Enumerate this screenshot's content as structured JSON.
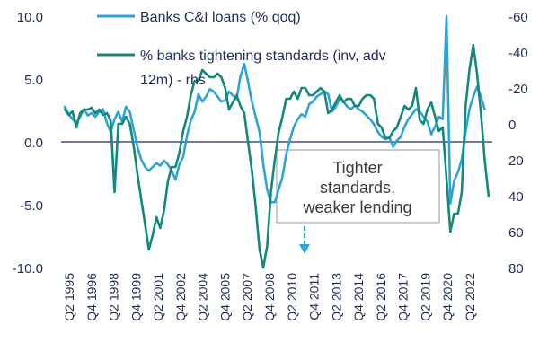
{
  "chart_data": {
    "type": "line",
    "title": "",
    "xlabel": "",
    "y_left": {
      "label": "",
      "range": [
        -10,
        10
      ],
      "ticks": [
        "10.0",
        "5.0",
        "0.0",
        "-5.0",
        "-10.0"
      ]
    },
    "y_right": {
      "label": "",
      "range": [
        -60,
        80
      ],
      "inverted": true,
      "ticks": [
        "-60",
        "-40",
        "-20",
        "0",
        "20",
        "40",
        "60",
        "80"
      ]
    },
    "x_ticks": [
      "Q2 1995",
      "Q4 1996",
      "Q2 1998",
      "Q4 1999",
      "Q2 2001",
      "Q4 2002",
      "Q2 2004",
      "Q4 2005",
      "Q2 2007",
      "Q4 2008",
      "Q2 2010",
      "Q4 2011",
      "Q2 2013",
      "Q4 2014",
      "Q2 2016",
      "Q4 2017",
      "Q2 2019",
      "Q4 2020",
      "Q2 2022"
    ],
    "legend": [
      {
        "label": "Banks C&I loans (% qoq)",
        "color": "#2fa3d8"
      },
      {
        "label": "% banks tightening standards (inv, adv 12m) - rhs",
        "color": "#14897a"
      }
    ],
    "annotation": {
      "lines": [
        "Tighter",
        "standards,",
        "weaker lending"
      ]
    },
    "series": [
      {
        "name": "Banks C&I loans (% qoq)",
        "axis": "left",
        "color": "#2fa3d8",
        "x": [
          1995.25,
          1995.5,
          1995.75,
          1996.0,
          1996.25,
          1996.5,
          1996.75,
          1997.0,
          1997.25,
          1997.5,
          1997.75,
          1998.0,
          1998.25,
          1998.5,
          1998.75,
          1999.0,
          1999.25,
          1999.5,
          1999.75,
          2000.0,
          2000.25,
          2000.5,
          2000.75,
          2001.0,
          2001.25,
          2001.5,
          2001.75,
          2002.0,
          2002.25,
          2002.5,
          2002.75,
          2003.0,
          2003.25,
          2003.5,
          2003.75,
          2004.0,
          2004.25,
          2004.5,
          2004.75,
          2005.0,
          2005.25,
          2005.5,
          2005.75,
          2006.0,
          2006.25,
          2006.5,
          2006.75,
          2007.0,
          2007.25,
          2007.5,
          2007.75,
          2008.0,
          2008.25,
          2008.5,
          2008.75,
          2009.0,
          2009.25,
          2009.5,
          2009.75,
          2010.0,
          2010.25,
          2010.5,
          2010.75,
          2011.0,
          2011.25,
          2011.5,
          2011.75,
          2012.0,
          2012.25,
          2012.5,
          2012.75,
          2013.0,
          2013.25,
          2013.5,
          2013.75,
          2014.0,
          2014.25,
          2014.5,
          2014.75,
          2015.0,
          2015.25,
          2015.5,
          2015.75,
          2016.0,
          2016.25,
          2016.5,
          2016.75,
          2017.0,
          2017.25,
          2017.5,
          2017.75,
          2018.0,
          2018.25,
          2018.5,
          2018.75,
          2019.0,
          2019.25,
          2019.5,
          2019.75,
          2020.0,
          2020.25,
          2020.5,
          2020.75,
          2021.0,
          2021.25,
          2021.5,
          2021.75,
          2022.0,
          2022.25,
          2022.5,
          2022.75
        ],
        "values": [
          2.8,
          2.2,
          1.8,
          1.5,
          2.0,
          2.6,
          2.1,
          2.3,
          2.0,
          2.4,
          2.6,
          1.5,
          0.8,
          1.8,
          2.4,
          1.6,
          2.8,
          2.4,
          1.0,
          -0.4,
          -1.4,
          -2.0,
          -2.3,
          -2.0,
          -1.7,
          -1.9,
          -1.5,
          -1.8,
          -2.3,
          -3.0,
          -1.8,
          -1.2,
          0.5,
          1.7,
          2.4,
          3.8,
          3.2,
          3.6,
          4.2,
          4.0,
          3.6,
          3.2,
          3.3,
          4.0,
          3.7,
          3.4,
          5.2,
          6.2,
          4.8,
          3.2,
          2.0,
          0.8,
          -1.8,
          -3.8,
          -4.8,
          -4.8,
          -3.8,
          -2.8,
          -1.0,
          0.2,
          1.2,
          1.8,
          2.2,
          2.0,
          3.0,
          3.2,
          3.6,
          3.8,
          4.0,
          3.8,
          2.4,
          2.8,
          3.4,
          3.2,
          2.8,
          2.6,
          2.9,
          2.6,
          2.4,
          2.1,
          1.8,
          1.4,
          0.8,
          0.4,
          0.2,
          0.4,
          -0.4,
          0.1,
          0.4,
          1.2,
          1.8,
          2.2,
          2.6,
          2.4,
          2.0,
          1.6,
          0.6,
          1.2,
          2.0,
          1.8,
          10.0,
          -4.9,
          -3.1,
          -2.4,
          -1.4,
          0.8,
          2.6,
          3.6,
          4.4,
          3.6,
          2.6
        ]
      },
      {
        "name": "% banks tightening standards (inv, adv 12m) - rhs",
        "axis": "right",
        "color": "#14897a",
        "x": [
          1995.25,
          1995.5,
          1995.75,
          1996.0,
          1996.25,
          1996.5,
          1996.75,
          1997.0,
          1997.25,
          1997.5,
          1997.75,
          1998.0,
          1998.25,
          1998.5,
          1998.75,
          1999.0,
          1999.25,
          1999.5,
          1999.75,
          2000.0,
          2000.25,
          2000.5,
          2000.75,
          2001.0,
          2001.25,
          2001.5,
          2001.75,
          2002.0,
          2002.25,
          2002.5,
          2002.75,
          2003.0,
          2003.25,
          2003.5,
          2003.75,
          2004.0,
          2004.25,
          2004.5,
          2004.75,
          2005.0,
          2005.25,
          2005.5,
          2005.75,
          2006.0,
          2006.25,
          2006.5,
          2006.75,
          2007.0,
          2007.25,
          2007.5,
          2007.75,
          2008.0,
          2008.25,
          2008.5,
          2008.75,
          2009.0,
          2009.25,
          2009.5,
          2009.75,
          2010.0,
          2010.25,
          2010.5,
          2010.75,
          2011.0,
          2011.25,
          2011.5,
          2011.75,
          2012.0,
          2012.25,
          2012.5,
          2012.75,
          2013.0,
          2013.25,
          2013.5,
          2013.75,
          2014.0,
          2014.25,
          2014.5,
          2014.75,
          2015.0,
          2015.25,
          2015.5,
          2015.75,
          2016.0,
          2016.25,
          2016.5,
          2016.75,
          2017.0,
          2017.25,
          2017.5,
          2017.75,
          2018.0,
          2018.25,
          2018.5,
          2018.75,
          2019.0,
          2019.25,
          2019.5,
          2019.75,
          2020.0,
          2020.25,
          2020.5,
          2020.75,
          2021.0,
          2021.25,
          2021.5,
          2021.75,
          2022.0,
          2022.25,
          2022.5,
          2022.75,
          2023.0
        ],
        "values": [
          -8,
          -5,
          -7,
          2,
          -6,
          -8,
          -8,
          -9,
          -6,
          -8,
          -5,
          -6,
          -2,
          38,
          0,
          0,
          -4,
          0,
          12,
          28,
          42,
          56,
          70,
          62,
          52,
          58,
          48,
          32,
          24,
          24,
          16,
          4,
          -4,
          -16,
          -24,
          -24,
          -30,
          -28,
          -26,
          -26,
          -28,
          -26,
          -20,
          -8,
          -12,
          -16,
          -10,
          -6,
          10,
          26,
          46,
          70,
          80,
          68,
          38,
          20,
          5,
          -4,
          -14,
          -14,
          -18,
          -14,
          -20,
          -20,
          -16,
          -16,
          -18,
          -20,
          -18,
          -6,
          -8,
          -12,
          -16,
          -12,
          -14,
          -14,
          -10,
          -10,
          -14,
          -16,
          -16,
          -14,
          0,
          2,
          8,
          8,
          4,
          2,
          -4,
          -10,
          -8,
          -10,
          -20,
          -2,
          0,
          -8,
          -12,
          -4,
          4,
          2,
          30,
          60,
          50,
          50,
          38,
          -10,
          -30,
          -44,
          -28,
          -6,
          20,
          40
        ]
      }
    ]
  }
}
